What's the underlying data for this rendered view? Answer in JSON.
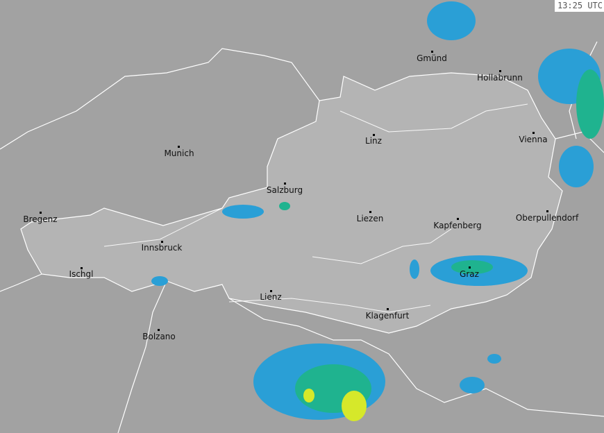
{
  "timestamp": "13:25 UTC",
  "colors": {
    "outside": "#a2a2a2",
    "country": "#b4b4b4",
    "border": "#ffffff",
    "radar_light": "#2a9fd6",
    "radar_mid": "#1fb38f",
    "radar_heavy": "#d6e82a"
  },
  "cities": [
    {
      "name": "Gmünd"
    },
    {
      "name": "Hollabrunn"
    },
    {
      "name": "Linz"
    },
    {
      "name": "Vienna"
    },
    {
      "name": "Munich"
    },
    {
      "name": "Salzburg"
    },
    {
      "name": "Bregenz"
    },
    {
      "name": "Liezen"
    },
    {
      "name": "Kapfenberg"
    },
    {
      "name": "Oberpullendorf"
    },
    {
      "name": "Innsbruck"
    },
    {
      "name": "Ischgl"
    },
    {
      "name": "Graz"
    },
    {
      "name": "Lienz"
    },
    {
      "name": "Klagenfurt"
    },
    {
      "name": "Bolzano"
    }
  ]
}
